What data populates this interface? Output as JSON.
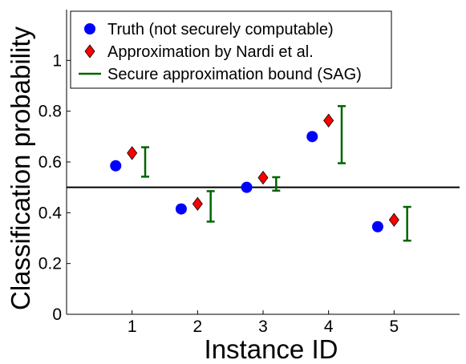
{
  "chart_data": {
    "type": "scatter",
    "xlabel": "Instance ID",
    "ylabel": "Classification probability",
    "xlim": [
      0,
      6
    ],
    "ylim": [
      0,
      1.2
    ],
    "x_ticks": [
      "1",
      "2",
      "3",
      "4",
      "5"
    ],
    "y_ticks": [
      "0",
      "0.2",
      "0.4",
      "0.6",
      "0.8",
      "1"
    ],
    "threshold_line": 0.5,
    "grid": false,
    "legend_position": "top-left",
    "series": [
      {
        "name": "Truth (not securely computable)",
        "marker": "circle",
        "color": "#0000ff",
        "x": [
          0.75,
          1.75,
          2.75,
          3.75,
          4.75
        ],
        "y": [
          0.585,
          0.415,
          0.5,
          0.7,
          0.345
        ]
      },
      {
        "name": "Approximation by Nardi et al.",
        "marker": "diamond",
        "color": "#ff0000",
        "x": [
          1.0,
          2.0,
          3.0,
          4.0,
          5.0
        ],
        "y": [
          0.635,
          0.435,
          0.538,
          0.763,
          0.372
        ]
      },
      {
        "name": "Secure approximation bound (SAG)",
        "marker": "errorbar",
        "color": "#006400",
        "x": [
          1.2,
          2.2,
          3.2,
          4.2,
          5.2
        ],
        "low": [
          0.542,
          0.365,
          0.487,
          0.595,
          0.29
        ],
        "high": [
          0.658,
          0.485,
          0.54,
          0.82,
          0.423
        ]
      }
    ]
  }
}
